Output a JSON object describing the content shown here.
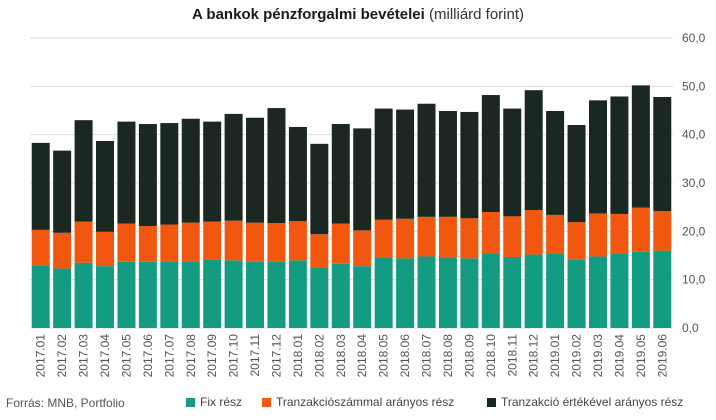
{
  "title": {
    "bold": "A bankok pénzforgalmi bevételei",
    "rest": "(milliárd forint)"
  },
  "source": "Forrás:  MNB, Portfolio",
  "colors": {
    "fix": "#149c83",
    "tranzakcioszam": "#f2570f",
    "ertek": "#1b2721",
    "grid": "#dddddd",
    "axis_text": "#555555"
  },
  "chart_data": {
    "type": "bar",
    "stacked": true,
    "title": "A bankok pénzforgalmi bevételei (milliárd forint)",
    "categories": [
      "2017.01",
      "2017.02",
      "2017.03",
      "2017.04",
      "2017.05",
      "2017.06",
      "2017.07",
      "2017.08",
      "2017.09",
      "2017.10",
      "2017.11",
      "2017.12",
      "2018.01",
      "2018.02",
      "2018.03",
      "2018.04",
      "2018.05",
      "2018.06",
      "2018.07",
      "2018.08",
      "2018.09",
      "2018.10",
      "2018.11",
      "2018.12",
      "2019.01",
      "2019.02",
      "2019.03",
      "2019.04",
      "2019.05",
      "2019.06"
    ],
    "series": [
      {
        "name": "Fix rész",
        "color": "#149c83",
        "values": [
          13.0,
          12.3,
          13.5,
          12.8,
          13.7,
          13.7,
          13.8,
          13.8,
          14.2,
          14.0,
          13.8,
          13.8,
          14.0,
          12.5,
          13.3,
          12.8,
          14.6,
          14.4,
          14.8,
          14.6,
          14.4,
          15.5,
          14.7,
          15.2,
          15.4,
          14.2,
          14.8,
          15.4,
          15.8,
          16.0
        ]
      },
      {
        "name": "Tranzakciószámmal arányos rész",
        "color": "#f2570f",
        "values": [
          7.3,
          7.4,
          8.5,
          7.1,
          7.9,
          7.4,
          7.6,
          8.0,
          7.8,
          8.2,
          8.0,
          7.9,
          8.1,
          6.9,
          8.3,
          7.4,
          7.8,
          8.2,
          8.2,
          8.4,
          8.3,
          8.5,
          8.4,
          9.2,
          8.0,
          7.7,
          8.9,
          8.2,
          9.1,
          8.2
        ]
      },
      {
        "name": "Tranzakció értékével arányos rész",
        "color": "#1b2721",
        "values": [
          18.0,
          17.0,
          21.0,
          18.8,
          21.1,
          21.1,
          21.0,
          21.5,
          20.7,
          22.1,
          21.7,
          23.8,
          19.5,
          18.7,
          20.6,
          21.1,
          23.0,
          22.6,
          23.4,
          21.9,
          22.0,
          24.2,
          22.3,
          24.8,
          21.5,
          20.1,
          23.4,
          24.3,
          25.3,
          23.6
        ]
      }
    ],
    "y_ticks": [
      "0,0",
      "10,0",
      "20,0",
      "30,0",
      "40,0",
      "50,0",
      "60,0"
    ],
    "ylim": [
      0,
      60
    ],
    "y_axis_position": "right",
    "grid": true,
    "legend_position": "bottom-right"
  }
}
